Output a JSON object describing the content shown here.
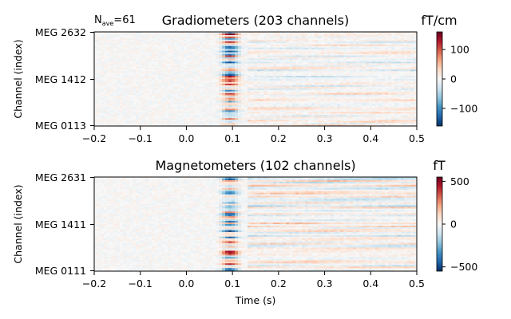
{
  "nave_prefix": "N",
  "nave_sub": "ave",
  "nave_value": "=61",
  "xlabel": "Time (s)",
  "chart_data": [
    {
      "type": "heatmap",
      "title": "Gradiometers (203 channels)",
      "ylabel": "Channel (index)",
      "xlim": [
        -0.2,
        0.5
      ],
      "x_ticks": [
        -0.2,
        -0.1,
        0.0,
        0.1,
        0.2,
        0.3,
        0.4,
        0.5
      ],
      "x_tick_labels": [
        "−0.2",
        "−0.1",
        "0.0",
        "0.1",
        "0.2",
        "0.3",
        "0.4",
        "0.5"
      ],
      "y_tick_labels": [
        "MEG 2632",
        "MEG 1412",
        "MEG 0113"
      ],
      "colorbar": {
        "label": "fT/cm",
        "vmin": -160,
        "vmax": 160,
        "ticks": [
          100,
          0,
          -100
        ],
        "tick_labels": [
          "100",
          "0",
          "−100"
        ],
        "cmap": [
          "#67001f",
          "#b2182b",
          "#d6604d",
          "#f4a582",
          "#fddbc7",
          "#f7f7f7",
          "#d1e5f0",
          "#92c5de",
          "#4393c3",
          "#2166ac",
          "#053061"
        ]
      }
    },
    {
      "type": "heatmap",
      "title": "Magnetometers (102 channels)",
      "ylabel": "Channel (index)",
      "xlim": [
        -0.2,
        0.5
      ],
      "x_ticks": [
        -0.2,
        -0.1,
        0.0,
        0.1,
        0.2,
        0.3,
        0.4,
        0.5
      ],
      "x_tick_labels": [
        "−0.2",
        "−0.1",
        "0.0",
        "0.1",
        "0.2",
        "0.3",
        "0.4",
        "0.5"
      ],
      "y_tick_labels": [
        "MEG 2631",
        "MEG 1411",
        "MEG 0111"
      ],
      "colorbar": {
        "label": "fT",
        "vmin": -550,
        "vmax": 550,
        "ticks": [
          500,
          0,
          -500
        ],
        "tick_labels": [
          "500",
          "0",
          "−500"
        ],
        "cmap": [
          "#67001f",
          "#b2182b",
          "#d6604d",
          "#f4a582",
          "#fddbc7",
          "#f7f7f7",
          "#d1e5f0",
          "#92c5de",
          "#4393c3",
          "#2166ac",
          "#053061"
        ]
      }
    }
  ]
}
